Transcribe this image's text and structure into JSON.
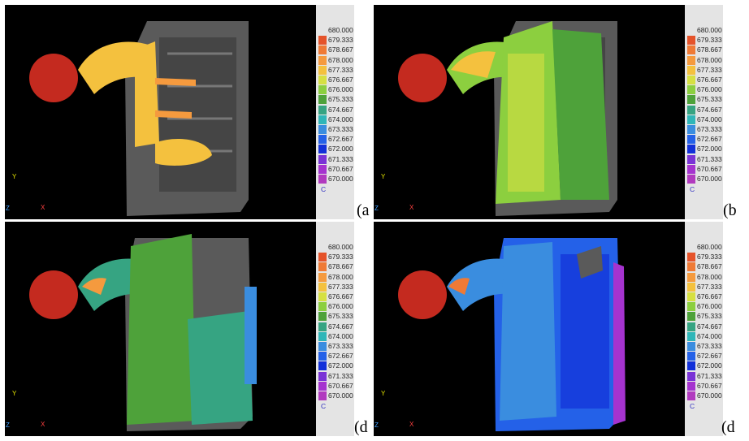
{
  "legend": {
    "values": [
      "680.000",
      "679.333",
      "678.667",
      "678.000",
      "677.333",
      "676.667",
      "676.000",
      "675.333",
      "674.667",
      "674.000",
      "673.333",
      "672.667",
      "672.000",
      "671.333",
      "670.667",
      "670.000"
    ],
    "colors": [
      "#c42a1f",
      "#e5532a",
      "#ef7a36",
      "#f59a3e",
      "#f4c13e",
      "#d6e042",
      "#8ccf3f",
      "#4ea23a",
      "#36a482",
      "#2fb6b8",
      "#3a8ddf",
      "#2461e8",
      "#1230d9",
      "#7a33d6",
      "#a533cf",
      "#b13abf"
    ],
    "unit": "C"
  },
  "axes": {
    "y": "Y",
    "x": "X",
    "z": "Z"
  },
  "panels": [
    {
      "label": "(a",
      "main_color": "#f4c13e",
      "secondary_color": "#d6e042"
    },
    {
      "label": "(b",
      "main_color": "#8ccf3f",
      "secondary_color": "#d6e042"
    },
    {
      "label": "(d",
      "main_color": "#4ea23a",
      "secondary_color": "#36a482"
    },
    {
      "label": "(d",
      "main_color": "#2461e8",
      "secondary_color": "#3a8ddf"
    }
  ]
}
